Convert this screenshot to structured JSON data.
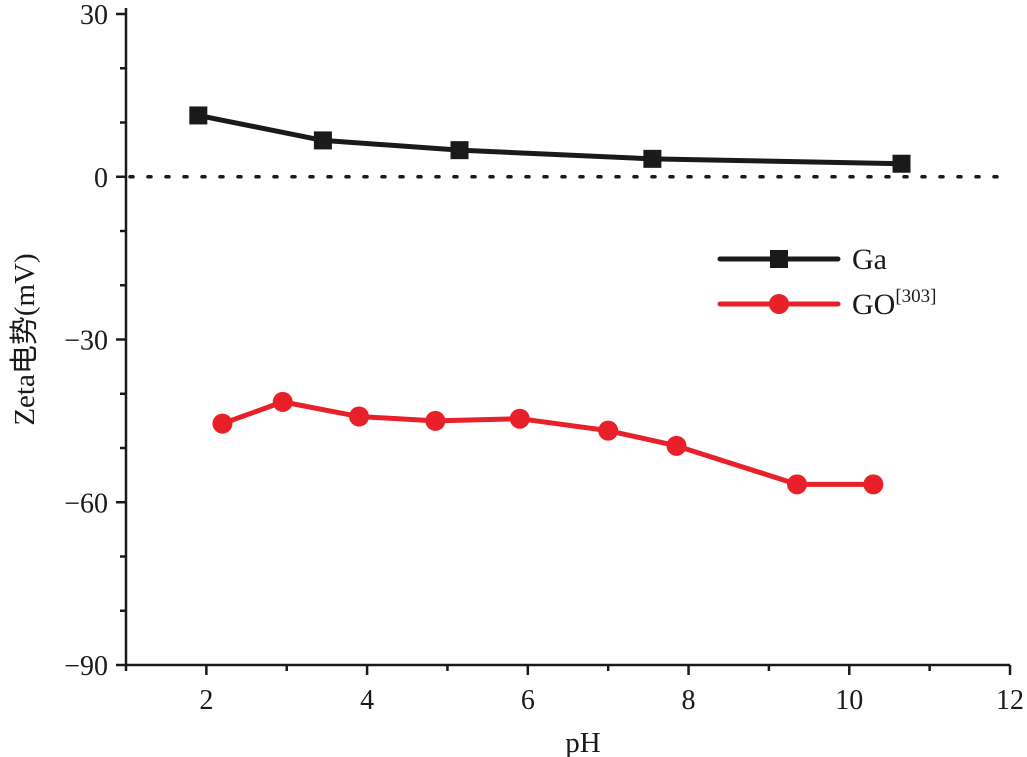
{
  "chart_data": {
    "type": "line",
    "title": "",
    "xlabel": "pH",
    "ylabel": "Zeta电势(mV)",
    "xlim": [
      1,
      12
    ],
    "ylim": [
      -90,
      30
    ],
    "xticks": [
      2,
      4,
      6,
      8,
      10,
      12
    ],
    "yticks": [
      30,
      0,
      -30,
      -60,
      -90
    ],
    "xtick_labels": [
      "2",
      "4",
      "6",
      "8",
      "10",
      "12"
    ],
    "ytick_labels": [
      "30",
      "0",
      "−30",
      "−60",
      "−90"
    ],
    "reference_line": {
      "y": 0,
      "style": "dotted"
    },
    "legend_position": "center-right",
    "series": [
      {
        "name": "Ga",
        "label_base": "Ga",
        "label_sup": "",
        "color": "#1a1a1a",
        "marker": "square",
        "x": [
          1.9,
          3.45,
          5.15,
          7.55,
          10.65
        ],
        "y": [
          11.3,
          6.7,
          4.9,
          3.3,
          2.4
        ]
      },
      {
        "name": "GO[303]",
        "label_base": "GO",
        "label_sup": "[303]",
        "color": "#e8202a",
        "marker": "circle",
        "x": [
          2.2,
          2.95,
          3.9,
          4.85,
          5.9,
          7.0,
          7.85,
          9.35,
          10.3
        ],
        "y": [
          -45.5,
          -41.5,
          -44.2,
          -45.0,
          -44.6,
          -46.8,
          -49.6,
          -56.7,
          -56.7
        ]
      }
    ]
  }
}
